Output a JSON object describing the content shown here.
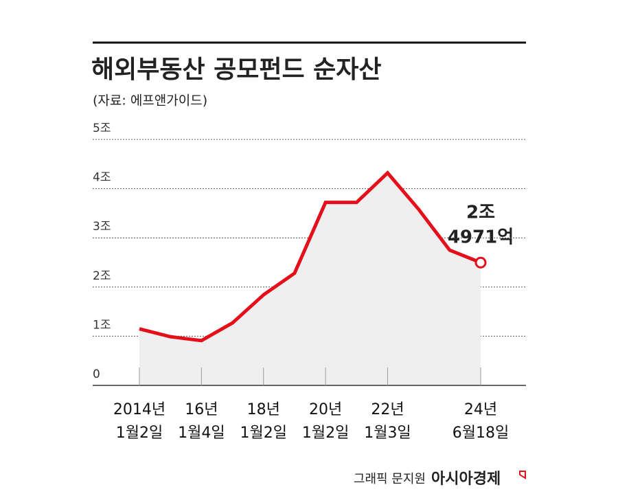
{
  "chart_data": {
    "type": "line",
    "title": "해외부동산 공모펀드 순자산",
    "subtitle": "(자료: 에프앤가이드)",
    "categories": [
      "2014년 1월2일",
      null,
      "16년 1월4일",
      null,
      "18년 1월2일",
      null,
      "20년 1월2일",
      null,
      "22년 1월3일",
      null,
      null,
      "24년 6월18일"
    ],
    "values": [
      1.15,
      0.99,
      0.91,
      1.27,
      1.84,
      2.28,
      3.72,
      3.72,
      4.32,
      3.58,
      2.75,
      2.4971
    ],
    "color": "#e3101b",
    "area_color": "#efefef",
    "ylim": [
      0,
      5
    ],
    "yticks": [
      0,
      {
        "value": 1,
        "label": "1조"
      },
      {
        "value": 2,
        "label": "2조"
      },
      {
        "value": 3,
        "label": "3조"
      },
      {
        "value": 4,
        "label": "4조"
      },
      {
        "value": 5,
        "label": "5조"
      }
    ],
    "grid": true,
    "annotation": [
      "2조",
      "4971억"
    ],
    "credit": "그래픽 문지원",
    "brand": "아시아경제"
  }
}
